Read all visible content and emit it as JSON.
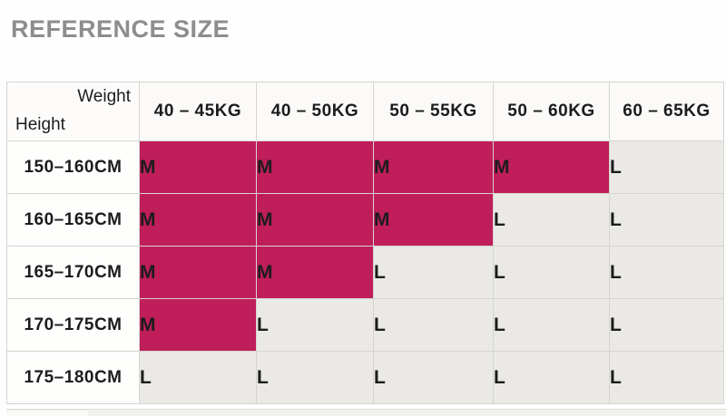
{
  "page": {
    "title": "REFERENCE SIZE"
  },
  "chart_data": {
    "type": "table",
    "title": "REFERENCE SIZE",
    "corner": {
      "top_right": "Weight",
      "bottom_left": "Height"
    },
    "columns": [
      "40 – 45KG",
      "40 – 50KG",
      "50 – 55KG",
      "50 – 60KG",
      "60 – 65KG"
    ],
    "rows": [
      "150–160CM",
      "160–165CM",
      "165–170CM",
      "170–175CM",
      "175–180CM"
    ],
    "values": [
      [
        "M",
        "M",
        "M",
        "M",
        "L"
      ],
      [
        "M",
        "M",
        "M",
        "L",
        "L"
      ],
      [
        "M",
        "M",
        "L",
        "L",
        "L"
      ],
      [
        "M",
        "L",
        "L",
        "L",
        "L"
      ],
      [
        "L",
        "L",
        "L",
        "L",
        "L"
      ]
    ],
    "colors": {
      "size_m_bg": "#c01e5b",
      "size_m_text": "#4a1030",
      "size_l_bg": "#eae9e5",
      "size_l_text": "#1e1e1e",
      "title_text": "#8f8c8e"
    }
  }
}
